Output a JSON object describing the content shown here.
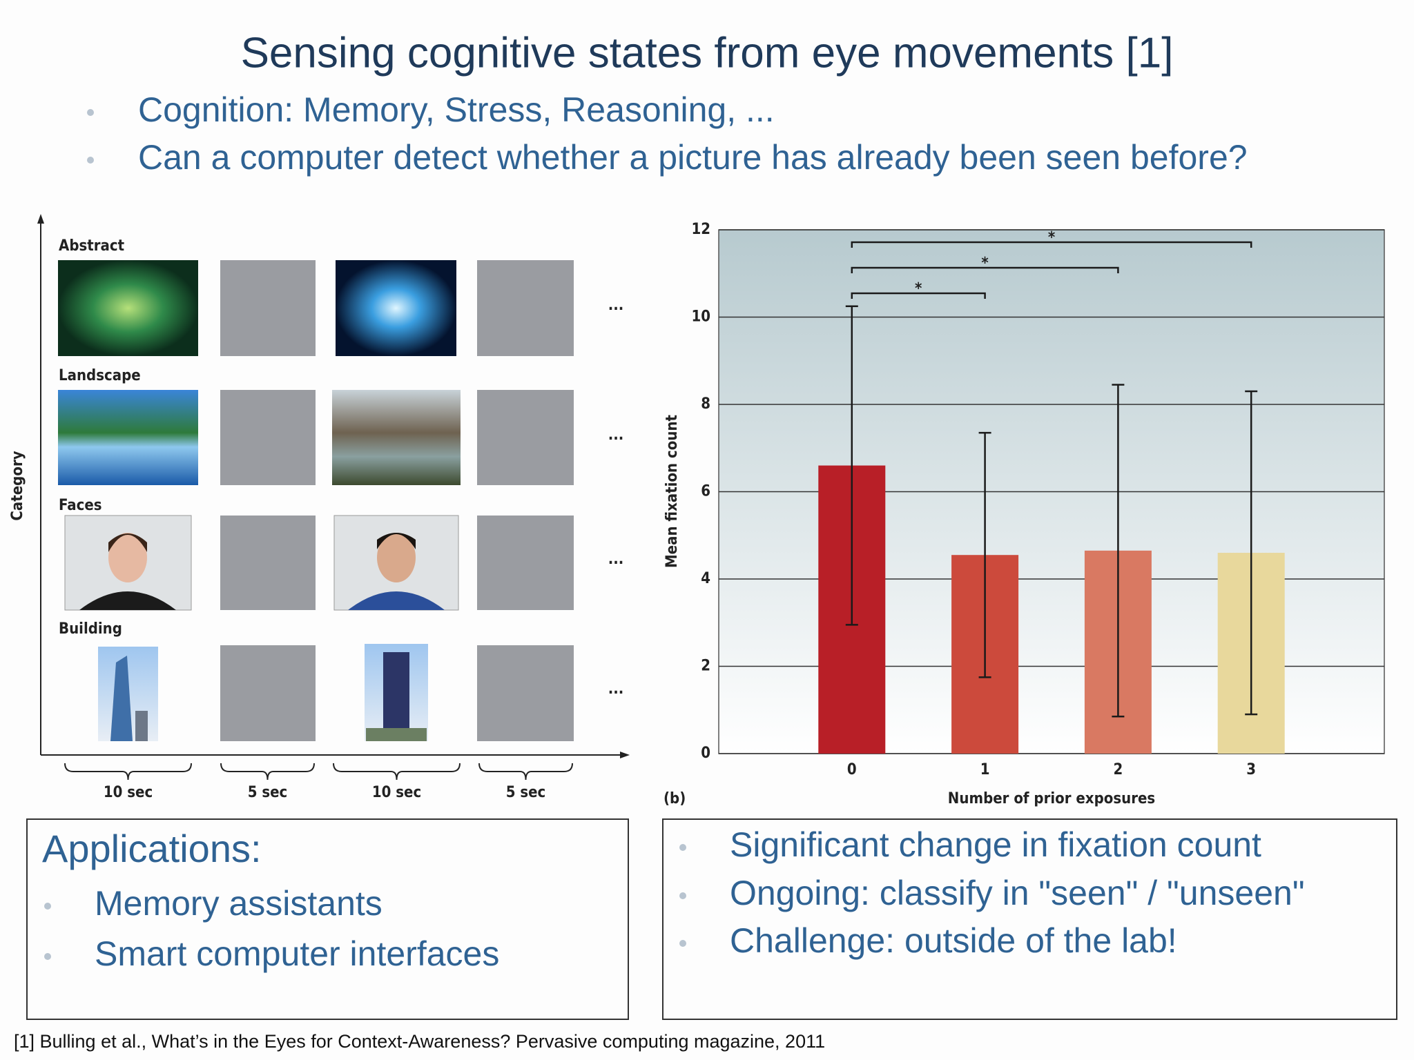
{
  "title": "Sensing cognitive states from eye movements [1]",
  "bullets": [
    "Cognition: Memory, Stress, Reasoning, ...",
    "Can a computer detect whether a picture has already been seen before?"
  ],
  "figure_a": {
    "y_label": "Category",
    "categories": [
      "Abstract",
      "Landscape",
      "Faces",
      "Building"
    ],
    "durations": [
      "10 sec",
      "5 sec",
      "10 sec",
      "5 sec"
    ],
    "ellipsis": "..."
  },
  "chart_data": {
    "type": "bar",
    "panel_label": "(b)",
    "x_label": "Number of prior exposures",
    "y_label": "Mean fixation count",
    "categories": [
      "0",
      "1",
      "2",
      "3"
    ],
    "values": [
      6.6,
      4.55,
      4.65,
      4.6
    ],
    "errors": [
      3.65,
      2.8,
      3.8,
      3.7
    ],
    "colors": [
      "#b81f27",
      "#cc4a3c",
      "#d97962",
      "#e8d89c"
    ],
    "ylim": [
      0,
      12
    ],
    "yticks": [
      0,
      2,
      4,
      6,
      8,
      10,
      12
    ],
    "grid": true,
    "significance": [
      {
        "categories": [
          "0",
          "3"
        ],
        "label": "*"
      },
      {
        "categories": [
          "0",
          "2"
        ],
        "label": "*"
      },
      {
        "categories": [
          "0",
          "1"
        ],
        "label": "*"
      }
    ]
  },
  "applications": {
    "title": "Applications:",
    "items": [
      "Memory assistants",
      "Smart computer interfaces"
    ]
  },
  "findings": [
    "Significant change in fixation count",
    "Ongoing: classify in \"seen\" / \"unseen\"",
    "Challenge: outside of the lab!"
  ],
  "reference": "[1] Bulling et al., What’s in the Eyes for Context-Awareness? Pervasive computing magazine, 2011"
}
